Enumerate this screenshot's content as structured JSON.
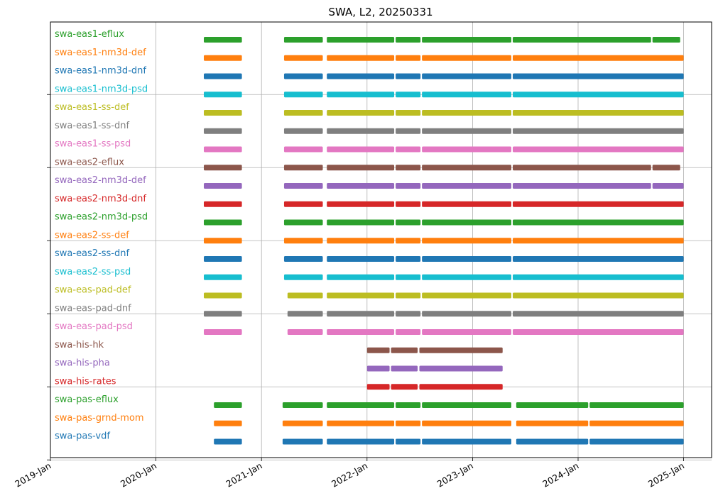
{
  "chart_data": {
    "type": "timeline",
    "title": "SWA, L2, 20250331",
    "xlabel": "",
    "ylabel": "",
    "grid": true,
    "x_ticks": [
      "2019-Jan",
      "2020-Jan",
      "2021-Jan",
      "2022-Jan",
      "2023-Jan",
      "2024-Jan",
      "2025-Jan"
    ],
    "xlim": [
      "2019-01-01",
      "2025-04-15"
    ],
    "series": [
      {
        "name": "swa-eas1-eflux",
        "color": "#2ca02c",
        "segments": [
          [
            "2020-06-15",
            "2020-10-25"
          ],
          [
            "2021-03-20",
            "2021-08-01"
          ],
          [
            "2021-08-15",
            "2022-04-05"
          ],
          [
            "2022-04-10",
            "2022-07-05"
          ],
          [
            "2022-07-10",
            "2023-05-15"
          ],
          [
            "2023-05-20",
            "2024-09-10"
          ],
          [
            "2024-09-15",
            "2024-12-20"
          ]
        ]
      },
      {
        "name": "swa-eas1-nm3d-def",
        "color": "#ff7f0e",
        "segments": [
          [
            "2020-06-15",
            "2020-10-25"
          ],
          [
            "2021-03-20",
            "2021-08-01"
          ],
          [
            "2021-08-15",
            "2022-04-05"
          ],
          [
            "2022-04-10",
            "2022-07-05"
          ],
          [
            "2022-07-10",
            "2023-05-15"
          ],
          [
            "2023-05-20",
            "2025-01-01"
          ]
        ]
      },
      {
        "name": "swa-eas1-nm3d-dnf",
        "color": "#1f77b4",
        "segments": [
          [
            "2020-06-15",
            "2020-10-25"
          ],
          [
            "2021-03-20",
            "2021-08-01"
          ],
          [
            "2021-08-15",
            "2022-04-05"
          ],
          [
            "2022-04-10",
            "2022-07-05"
          ],
          [
            "2022-07-10",
            "2023-05-15"
          ],
          [
            "2023-05-20",
            "2025-01-01"
          ]
        ]
      },
      {
        "name": "swa-eas1-nm3d-psd",
        "color": "#17becf",
        "segments": [
          [
            "2020-06-15",
            "2020-10-25"
          ],
          [
            "2021-03-20",
            "2021-08-01"
          ],
          [
            "2021-08-15",
            "2022-04-05"
          ],
          [
            "2022-04-10",
            "2022-07-05"
          ],
          [
            "2022-07-10",
            "2023-05-15"
          ],
          [
            "2023-05-20",
            "2025-01-01"
          ]
        ]
      },
      {
        "name": "swa-eas1-ss-def",
        "color": "#bcbd22",
        "segments": [
          [
            "2020-06-15",
            "2020-10-25"
          ],
          [
            "2021-03-20",
            "2021-08-01"
          ],
          [
            "2021-08-15",
            "2022-04-05"
          ],
          [
            "2022-04-10",
            "2022-07-05"
          ],
          [
            "2022-07-10",
            "2023-05-15"
          ],
          [
            "2023-05-20",
            "2025-01-01"
          ]
        ]
      },
      {
        "name": "swa-eas1-ss-dnf",
        "color": "#7f7f7f",
        "segments": [
          [
            "2020-06-15",
            "2020-10-25"
          ],
          [
            "2021-03-20",
            "2021-08-01"
          ],
          [
            "2021-08-15",
            "2022-04-05"
          ],
          [
            "2022-04-10",
            "2022-07-05"
          ],
          [
            "2022-07-10",
            "2023-05-15"
          ],
          [
            "2023-05-20",
            "2025-01-01"
          ]
        ]
      },
      {
        "name": "swa-eas1-ss-psd",
        "color": "#e377c2",
        "segments": [
          [
            "2020-06-15",
            "2020-10-25"
          ],
          [
            "2021-03-20",
            "2021-08-01"
          ],
          [
            "2021-08-15",
            "2022-04-05"
          ],
          [
            "2022-04-10",
            "2022-07-05"
          ],
          [
            "2022-07-10",
            "2023-05-15"
          ],
          [
            "2023-05-20",
            "2025-01-01"
          ]
        ]
      },
      {
        "name": "swa-eas2-eflux",
        "color": "#8c564b",
        "segments": [
          [
            "2020-06-15",
            "2020-10-25"
          ],
          [
            "2021-03-20",
            "2021-08-01"
          ],
          [
            "2021-08-15",
            "2022-04-05"
          ],
          [
            "2022-04-10",
            "2022-07-05"
          ],
          [
            "2022-07-10",
            "2023-05-15"
          ],
          [
            "2023-05-20",
            "2024-09-10"
          ],
          [
            "2024-09-15",
            "2024-12-20"
          ]
        ]
      },
      {
        "name": "swa-eas2-nm3d-def",
        "color": "#9467bd",
        "segments": [
          [
            "2020-06-15",
            "2020-10-25"
          ],
          [
            "2021-03-20",
            "2021-08-01"
          ],
          [
            "2021-08-15",
            "2022-04-05"
          ],
          [
            "2022-04-10",
            "2022-07-05"
          ],
          [
            "2022-07-10",
            "2023-05-15"
          ],
          [
            "2023-05-20",
            "2024-09-10"
          ],
          [
            "2024-09-15",
            "2025-01-01"
          ]
        ]
      },
      {
        "name": "swa-eas2-nm3d-dnf",
        "color": "#d62728",
        "segments": [
          [
            "2020-06-15",
            "2020-10-25"
          ],
          [
            "2021-03-20",
            "2021-08-01"
          ],
          [
            "2021-08-15",
            "2022-04-05"
          ],
          [
            "2022-04-10",
            "2022-07-05"
          ],
          [
            "2022-07-10",
            "2023-05-15"
          ],
          [
            "2023-05-20",
            "2025-01-01"
          ]
        ]
      },
      {
        "name": "swa-eas2-nm3d-psd",
        "color": "#2ca02c",
        "segments": [
          [
            "2020-06-15",
            "2020-10-25"
          ],
          [
            "2021-03-20",
            "2021-08-01"
          ],
          [
            "2021-08-15",
            "2022-04-05"
          ],
          [
            "2022-04-10",
            "2022-07-05"
          ],
          [
            "2022-07-10",
            "2023-05-15"
          ],
          [
            "2023-05-20",
            "2025-01-01"
          ]
        ]
      },
      {
        "name": "swa-eas2-ss-def",
        "color": "#ff7f0e",
        "segments": [
          [
            "2020-06-15",
            "2020-10-25"
          ],
          [
            "2021-03-20",
            "2021-08-01"
          ],
          [
            "2021-08-15",
            "2022-04-05"
          ],
          [
            "2022-04-10",
            "2022-07-05"
          ],
          [
            "2022-07-10",
            "2023-05-15"
          ],
          [
            "2023-05-20",
            "2025-01-01"
          ]
        ]
      },
      {
        "name": "swa-eas2-ss-dnf",
        "color": "#1f77b4",
        "segments": [
          [
            "2020-06-15",
            "2020-10-25"
          ],
          [
            "2021-03-20",
            "2021-08-01"
          ],
          [
            "2021-08-15",
            "2022-04-05"
          ],
          [
            "2022-04-10",
            "2022-07-05"
          ],
          [
            "2022-07-10",
            "2023-05-15"
          ],
          [
            "2023-05-20",
            "2025-01-01"
          ]
        ]
      },
      {
        "name": "swa-eas2-ss-psd",
        "color": "#17becf",
        "segments": [
          [
            "2020-06-15",
            "2020-10-25"
          ],
          [
            "2021-03-20",
            "2021-08-01"
          ],
          [
            "2021-08-15",
            "2022-04-05"
          ],
          [
            "2022-04-10",
            "2022-07-05"
          ],
          [
            "2022-07-10",
            "2023-05-15"
          ],
          [
            "2023-05-20",
            "2025-01-01"
          ]
        ]
      },
      {
        "name": "swa-eas-pad-def",
        "color": "#bcbd22",
        "segments": [
          [
            "2020-06-15",
            "2020-10-25"
          ],
          [
            "2021-04-01",
            "2021-08-01"
          ],
          [
            "2021-08-15",
            "2022-04-05"
          ],
          [
            "2022-04-10",
            "2022-07-05"
          ],
          [
            "2022-07-10",
            "2023-05-15"
          ],
          [
            "2023-05-20",
            "2025-01-01"
          ]
        ]
      },
      {
        "name": "swa-eas-pad-dnf",
        "color": "#7f7f7f",
        "segments": [
          [
            "2020-06-15",
            "2020-10-25"
          ],
          [
            "2021-04-01",
            "2021-08-01"
          ],
          [
            "2021-08-15",
            "2022-04-05"
          ],
          [
            "2022-04-10",
            "2022-07-05"
          ],
          [
            "2022-07-10",
            "2023-05-15"
          ],
          [
            "2023-05-20",
            "2025-01-01"
          ]
        ]
      },
      {
        "name": "swa-eas-pad-psd",
        "color": "#e377c2",
        "segments": [
          [
            "2020-06-15",
            "2020-10-25"
          ],
          [
            "2021-04-01",
            "2021-08-01"
          ],
          [
            "2021-08-15",
            "2022-04-05"
          ],
          [
            "2022-04-10",
            "2022-07-05"
          ],
          [
            "2022-07-10",
            "2023-05-15"
          ],
          [
            "2023-05-20",
            "2025-01-01"
          ]
        ]
      },
      {
        "name": "swa-his-hk",
        "color": "#8c564b",
        "segments": [
          [
            "2022-01-01",
            "2022-03-20"
          ],
          [
            "2022-03-25",
            "2022-06-25"
          ],
          [
            "2022-07-01",
            "2023-04-15"
          ]
        ]
      },
      {
        "name": "swa-his-pha",
        "color": "#9467bd",
        "segments": [
          [
            "2022-01-01",
            "2022-03-20"
          ],
          [
            "2022-03-25",
            "2022-06-25"
          ],
          [
            "2022-07-01",
            "2023-04-15"
          ]
        ]
      },
      {
        "name": "swa-his-rates",
        "color": "#d62728",
        "segments": [
          [
            "2022-01-01",
            "2022-03-20"
          ],
          [
            "2022-03-25",
            "2022-06-25"
          ],
          [
            "2022-07-01",
            "2023-04-15"
          ]
        ]
      },
      {
        "name": "swa-pas-eflux",
        "color": "#2ca02c",
        "segments": [
          [
            "2020-07-20",
            "2020-10-25"
          ],
          [
            "2021-03-15",
            "2021-08-01"
          ],
          [
            "2021-08-15",
            "2022-04-05"
          ],
          [
            "2022-04-10",
            "2022-07-05"
          ],
          [
            "2022-07-10",
            "2023-05-15"
          ],
          [
            "2023-06-01",
            "2024-02-05"
          ],
          [
            "2024-02-10",
            "2025-01-01"
          ]
        ]
      },
      {
        "name": "swa-pas-grnd-mom",
        "color": "#ff7f0e",
        "segments": [
          [
            "2020-07-20",
            "2020-10-25"
          ],
          [
            "2021-03-15",
            "2021-08-01"
          ],
          [
            "2021-08-15",
            "2022-04-05"
          ],
          [
            "2022-04-10",
            "2022-07-05"
          ],
          [
            "2022-07-10",
            "2023-05-15"
          ],
          [
            "2023-06-01",
            "2024-02-05"
          ],
          [
            "2024-02-10",
            "2025-01-01"
          ]
        ]
      },
      {
        "name": "swa-pas-vdf",
        "color": "#1f77b4",
        "segments": [
          [
            "2020-07-20",
            "2020-10-25"
          ],
          [
            "2021-03-15",
            "2021-08-01"
          ],
          [
            "2021-08-15",
            "2022-04-05"
          ],
          [
            "2022-04-10",
            "2022-07-05"
          ],
          [
            "2022-07-10",
            "2023-05-15"
          ],
          [
            "2023-06-01",
            "2024-02-05"
          ],
          [
            "2024-02-10",
            "2025-01-01"
          ]
        ]
      }
    ]
  }
}
